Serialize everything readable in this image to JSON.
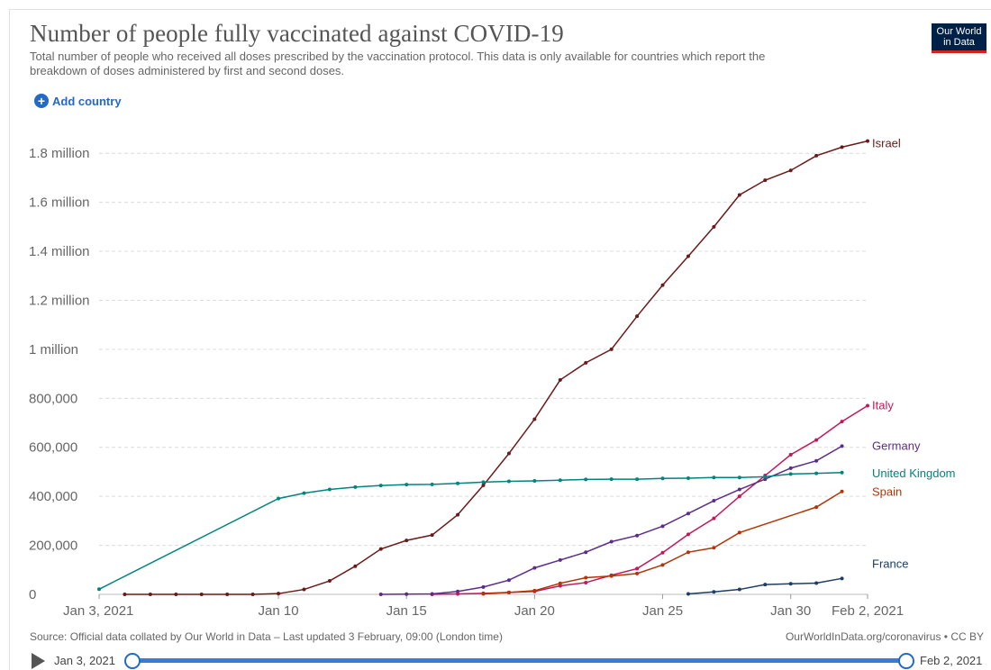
{
  "header": {
    "title": "Number of people fully vaccinated against COVID-19",
    "subtitle": "Total number of people who received all doses prescribed by the vaccination protocol. This data is only available for countries which report the breakdown of doses administered by first and second doses.",
    "logo_line1": "Our World",
    "logo_line2": "in Data",
    "add_country_label": "Add country"
  },
  "chart_data": {
    "type": "line",
    "title": "Number of people fully vaccinated against COVID-19",
    "ylim": [
      0,
      1900000
    ],
    "yticks": [
      0,
      200000,
      400000,
      600000,
      800000,
      1000000,
      1200000,
      1400000,
      1600000,
      1800000
    ],
    "ytick_labels": [
      "0",
      "200,000",
      "400,000",
      "600,000",
      "800,000",
      "1 million",
      "1.2 million",
      "1.4 million",
      "1.6 million",
      "1.8 million"
    ],
    "xticks": [
      "2021-01-03",
      "2021-01-10",
      "2021-01-15",
      "2021-01-20",
      "2021-01-25",
      "2021-01-30",
      "2021-02-02"
    ],
    "xtick_labels": [
      "Jan 3, 2021",
      "Jan 10",
      "Jan 15",
      "Jan 20",
      "Jan 25",
      "Jan 30",
      "Feb 2, 2021"
    ],
    "grid": "horizontal dashed",
    "legend": "right, inline labels",
    "series": [
      {
        "name": "Israel",
        "color": "#6b1a1a",
        "x": [
          "2021-01-04",
          "2021-01-05",
          "2021-01-06",
          "2021-01-07",
          "2021-01-08",
          "2021-01-09",
          "2021-01-10",
          "2021-01-11",
          "2021-01-12",
          "2021-01-13",
          "2021-01-14",
          "2021-01-15",
          "2021-01-16",
          "2021-01-17",
          "2021-01-18",
          "2021-01-19",
          "2021-01-20",
          "2021-01-21",
          "2021-01-22",
          "2021-01-23",
          "2021-01-24",
          "2021-01-25",
          "2021-01-26",
          "2021-01-27",
          "2021-01-28",
          "2021-01-29",
          "2021-01-30",
          "2021-01-31",
          "2021-02-01",
          "2021-02-02"
        ],
        "y": [
          0,
          0,
          0,
          0,
          0,
          0,
          3000,
          20000,
          55000,
          115000,
          185000,
          220000,
          242000,
          325000,
          445000,
          575000,
          715000,
          875000,
          945000,
          1000000,
          1135000,
          1262000,
          1380000,
          1500000,
          1630000,
          1690000,
          1730000,
          1790000,
          1825000,
          1850000
        ]
      },
      {
        "name": "Italy",
        "color": "#c2185b",
        "x": [
          "2021-01-16",
          "2021-01-17",
          "2021-01-18",
          "2021-01-19",
          "2021-01-20",
          "2021-01-21",
          "2021-01-22",
          "2021-01-23",
          "2021-01-24",
          "2021-01-25",
          "2021-01-26",
          "2021-01-27",
          "2021-01-28",
          "2021-01-29",
          "2021-01-30",
          "2021-01-31",
          "2021-02-01",
          "2021-02-02"
        ],
        "y": [
          0,
          2000,
          4000,
          8000,
          12000,
          35000,
          48000,
          78000,
          105000,
          170000,
          245000,
          310000,
          400000,
          485000,
          570000,
          630000,
          705000,
          770000
        ]
      },
      {
        "name": "Germany",
        "color": "#5b2c8a",
        "x": [
          "2021-01-14",
          "2021-01-15",
          "2021-01-16",
          "2021-01-17",
          "2021-01-18",
          "2021-01-19",
          "2021-01-20",
          "2021-01-21",
          "2021-01-22",
          "2021-01-23",
          "2021-01-24",
          "2021-01-25",
          "2021-01-26",
          "2021-01-27",
          "2021-01-28",
          "2021-01-29",
          "2021-01-30",
          "2021-01-31",
          "2021-02-01"
        ],
        "y": [
          0,
          1000,
          2000,
          12000,
          30000,
          58000,
          108000,
          140000,
          172000,
          215000,
          240000,
          278000,
          330000,
          382000,
          428000,
          470000,
          515000,
          545000,
          605000
        ]
      },
      {
        "name": "United Kingdom",
        "color": "#00847e",
        "x": [
          "2021-01-03",
          "2021-01-10",
          "2021-01-11",
          "2021-01-12",
          "2021-01-13",
          "2021-01-14",
          "2021-01-15",
          "2021-01-16",
          "2021-01-17",
          "2021-01-18",
          "2021-01-19",
          "2021-01-20",
          "2021-01-21",
          "2021-01-22",
          "2021-01-23",
          "2021-01-24",
          "2021-01-25",
          "2021-01-26",
          "2021-01-27",
          "2021-01-28",
          "2021-01-29",
          "2021-01-30",
          "2021-01-31",
          "2021-02-01"
        ],
        "y": [
          21000,
          391000,
          413000,
          428000,
          438000,
          444000,
          448000,
          449000,
          453000,
          458000,
          461000,
          463000,
          466000,
          469000,
          470000,
          470000,
          473000,
          474000,
          477000,
          477000,
          480000,
          491000,
          494000,
          497000
        ]
      },
      {
        "name": "Spain",
        "color": "#b13507",
        "x": [
          "2021-01-18",
          "2021-01-19",
          "2021-01-20",
          "2021-01-21",
          "2021-01-22",
          "2021-01-23",
          "2021-01-24",
          "2021-01-25",
          "2021-01-26",
          "2021-01-27",
          "2021-01-28",
          "2021-01-31",
          "2021-02-01"
        ],
        "y": [
          2000,
          8000,
          15000,
          45000,
          68000,
          75000,
          85000,
          120000,
          172000,
          190000,
          252000,
          356000,
          420000
        ]
      },
      {
        "name": "France",
        "color": "#1d3d63",
        "x": [
          "2021-01-26",
          "2021-01-27",
          "2021-01-28",
          "2021-01-29",
          "2021-01-30",
          "2021-01-31",
          "2021-02-01"
        ],
        "y": [
          2000,
          10000,
          20000,
          40000,
          43000,
          46000,
          65000
        ]
      }
    ]
  },
  "footer": {
    "source": "Source: Official data collated by Our World in Data – Last updated 3 February, 09:00 (London time)",
    "credit": "OurWorldInData.org/coronavirus • CC BY"
  },
  "timeline": {
    "start_label": "Jan 3, 2021",
    "end_label": "Feb 2, 2021"
  }
}
